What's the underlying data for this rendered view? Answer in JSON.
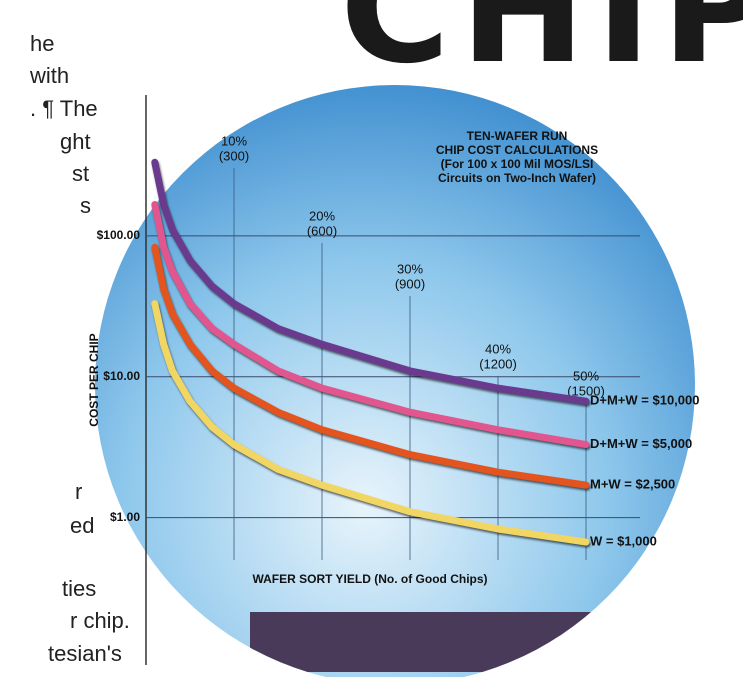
{
  "headline": "CHIP",
  "column_text": [
    "he",
    "with",
    ". ¶ The",
    "ght",
    "st",
    "s",
    "r",
    "ed",
    "ties",
    "r chip.",
    "tesian's"
  ],
  "chart_data": {
    "type": "line",
    "title": "TEN-WAFER RUN",
    "subtitle": [
      "CHIP COST CALCULATIONS",
      "(For 100 x 100 Mil MOS/LSI",
      "Circuits on Two-Inch Wafer)"
    ],
    "xlabel": "WAFER SORT YIELD (No. of Good Chips)",
    "ylabel": "COST PER CHIP",
    "x": [
      1,
      2,
      3,
      5,
      7.5,
      10,
      15,
      20,
      30,
      40,
      50
    ],
    "series": [
      {
        "name": "D+M+W = $10,000",
        "color": "#6a3a8e",
        "values": [
          333,
          167,
          111,
          67,
          44,
          33,
          22,
          17,
          11,
          8.3,
          6.7
        ]
      },
      {
        "name": "D+M+W = $5,000",
        "color": "#e2568f",
        "values": [
          167,
          83,
          56,
          33,
          22,
          17,
          11,
          8.3,
          5.6,
          4.2,
          3.3
        ]
      },
      {
        "name": "M+W = $2,500",
        "color": "#e3541f",
        "values": [
          83,
          42,
          28,
          17,
          11,
          8.3,
          5.6,
          4.2,
          2.8,
          2.1,
          1.7
        ]
      },
      {
        "name": "W = $1,000",
        "color": "#f2d664",
        "values": [
          33,
          17,
          11,
          6.7,
          4.4,
          3.3,
          2.2,
          1.7,
          1.1,
          0.83,
          0.67
        ]
      }
    ],
    "xlim": [
      0,
      55
    ],
    "xticks": [
      {
        "value": 10,
        "label": "10%"
      },
      {
        "value": 20,
        "label": "20%"
      },
      {
        "value": 30,
        "label": "30%"
      },
      {
        "value": 40,
        "label": "40%"
      },
      {
        "value": 50,
        "label": "50%"
      }
    ],
    "xtick_sublabels": [
      "(300)",
      "(600)",
      "(900)",
      "(1200)",
      "(1500)"
    ],
    "ylim": [
      0.5,
      1000
    ],
    "yticks": [
      {
        "value": 1,
        "label": "$1.00"
      },
      {
        "value": 10,
        "label": "$10.00"
      },
      {
        "value": 100,
        "label": "$100.00"
      }
    ],
    "log_y": true,
    "grid": true
  }
}
